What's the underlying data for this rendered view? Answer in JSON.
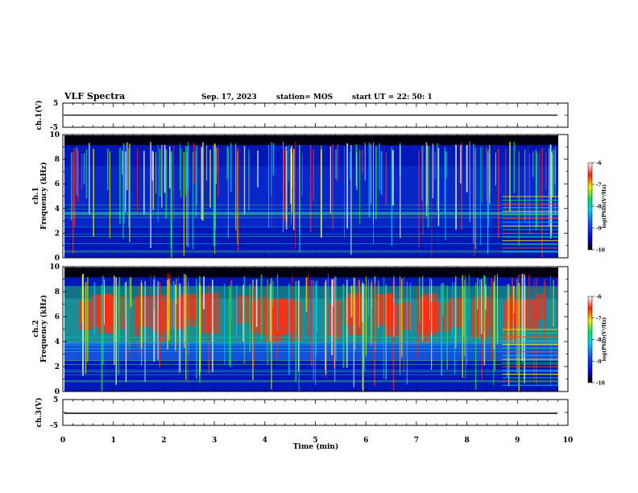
{
  "header": {
    "title": "VLF Spectra",
    "date": "Sep. 17, 2023",
    "station": "station= MOS",
    "start": "start  UT =   22: 50: 1"
  },
  "chart_data": [
    {
      "type": "line",
      "panel": "ch1-voltage",
      "ylabel": "ch.1(V)",
      "ylim": [
        -5,
        5
      ],
      "yticks": [
        "5",
        "-5"
      ],
      "x": [
        0,
        10
      ],
      "values": [
        0,
        0
      ]
    },
    {
      "type": "heatmap",
      "panel": "ch1-spectrogram",
      "ylabel_channel": "ch.1",
      "ylabel": "Frequency (kHz)",
      "ylim": [
        0,
        10
      ],
      "yticks": [
        "0",
        "2",
        "4",
        "6",
        "8",
        "10"
      ],
      "colorbar": {
        "label": "log(PSD)(V²/Hz)",
        "range": [
          -10,
          -6
        ],
        "ticks": [
          "-6",
          "-7",
          "-8",
          "-9",
          "-10"
        ]
      }
    },
    {
      "type": "heatmap",
      "panel": "ch2-spectrogram",
      "ylabel_channel": "ch.2",
      "ylabel": "Frequency (kHz)",
      "ylim": [
        0,
        10
      ],
      "yticks": [
        "0",
        "2",
        "4",
        "6",
        "8",
        "10"
      ],
      "colorbar": {
        "label": "log(PSD)(V²/Hz)",
        "range": [
          -10,
          -6
        ],
        "ticks": [
          "-6",
          "-7",
          "-8",
          "-9",
          "-10"
        ]
      }
    },
    {
      "type": "line",
      "panel": "ch3-voltage",
      "ylabel": "ch.3(V)",
      "ylim": [
        -5,
        5
      ],
      "yticks": [
        "5",
        "-5"
      ],
      "x": [
        0,
        10
      ],
      "values": [
        -1,
        -1
      ]
    }
  ],
  "xaxis": {
    "label": "Time (min)",
    "range": [
      0,
      10
    ],
    "ticks": [
      "0",
      "1",
      "2",
      "3",
      "4",
      "5",
      "6",
      "7",
      "8",
      "9",
      "10"
    ]
  }
}
